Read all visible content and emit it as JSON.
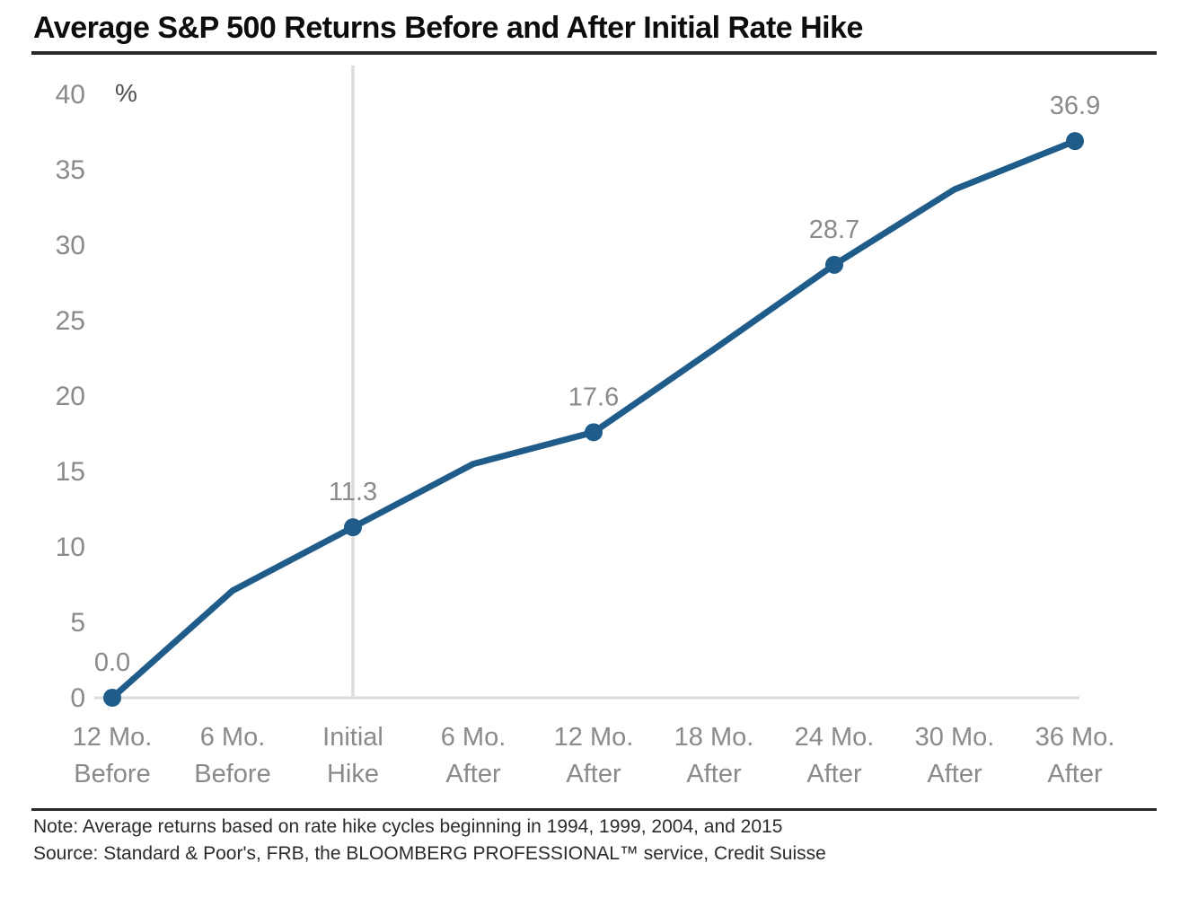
{
  "title": "Average S&P 500 Returns Before and After Initial Rate Hike",
  "chart_data": {
    "type": "line",
    "title": "Average S&P 500 Returns Before and After Initial Rate Hike",
    "unit_label": "%",
    "categories": [
      [
        "12 Mo.",
        "Before"
      ],
      [
        "6 Mo.",
        "Before"
      ],
      [
        "Initial",
        "Hike"
      ],
      [
        "6 Mo.",
        "After"
      ],
      [
        "12 Mo.",
        "After"
      ],
      [
        "18 Mo.",
        "After"
      ],
      [
        "24 Mo.",
        "After"
      ],
      [
        "30 Mo.",
        "After"
      ],
      [
        "36 Mo.",
        "After"
      ]
    ],
    "values": [
      0.0,
      7.1,
      11.3,
      15.5,
      17.6,
      23.1,
      28.7,
      33.7,
      36.9
    ],
    "labeled_points": [
      {
        "index": 0,
        "label": "0.0"
      },
      {
        "index": 2,
        "label": "11.3"
      },
      {
        "index": 4,
        "label": "17.6"
      },
      {
        "index": 6,
        "label": "28.7"
      },
      {
        "index": 8,
        "label": "36.9"
      }
    ],
    "y_ticks": [
      0,
      5,
      10,
      15,
      20,
      25,
      30,
      35,
      40
    ],
    "ylim": [
      0,
      40
    ],
    "reference_line_category": "Initial Hike",
    "reference_line_index": 2,
    "grid": false,
    "legend": false,
    "colors": {
      "line": "#205c8a",
      "marker": "#205c8a",
      "tick_label": "#8a8a8a",
      "data_label": "#8a8a8a",
      "unit_label": "#4f4f4f",
      "axis_line": "#dadada",
      "reference_line": "#dcdcdc"
    }
  },
  "footer": {
    "note": "Note: Average returns based on rate hike cycles beginning in 1994, 1999, 2004, and 2015",
    "source": "Source: Standard & Poor's, FRB, the BLOOMBERG PROFESSIONAL™ service, Credit Suisse"
  }
}
